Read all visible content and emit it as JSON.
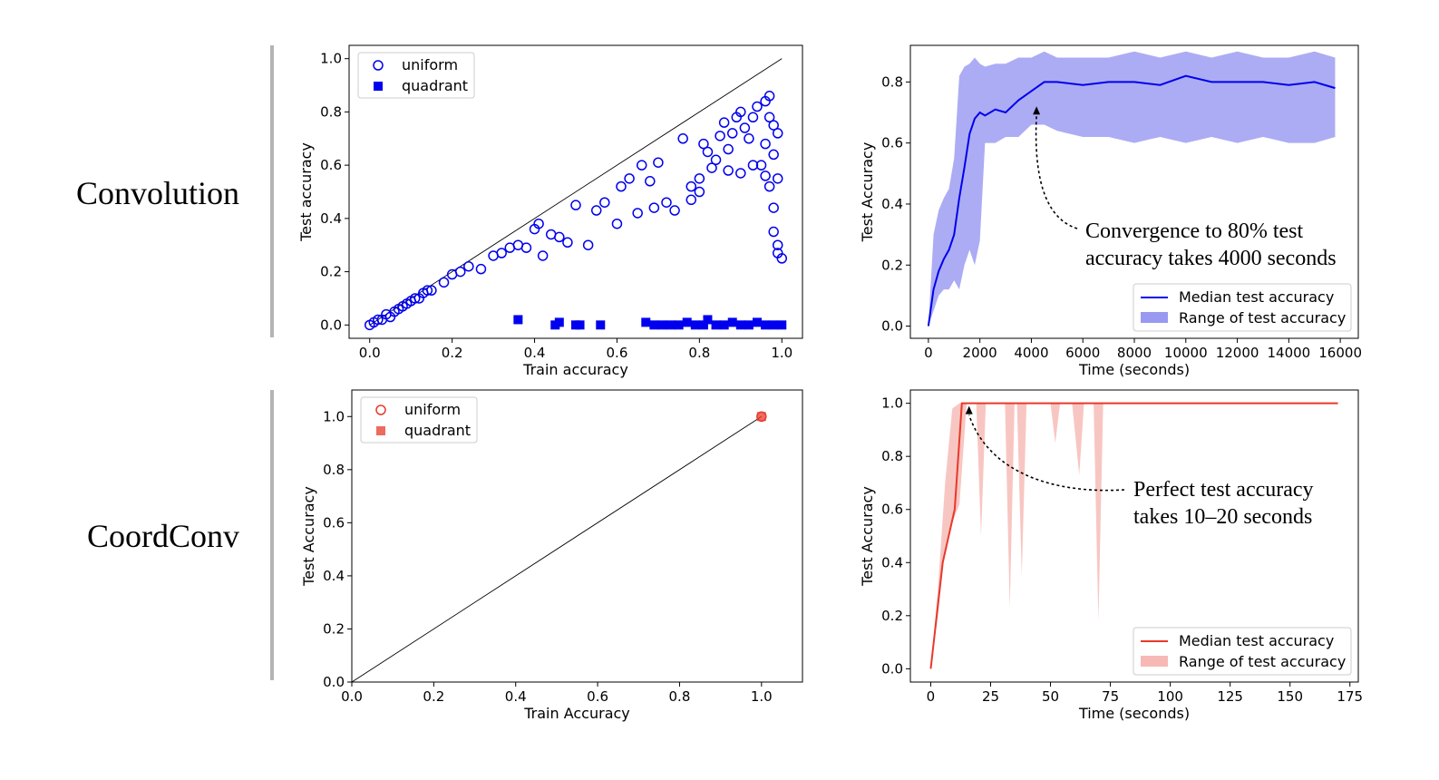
{
  "row_labels": [
    "Convolution",
    "CoordConv"
  ],
  "chart_data": [
    {
      "type": "scatter",
      "xlabel": "Train accuracy",
      "ylabel": "Test accuracy",
      "xlim": [
        -0.05,
        1.05
      ],
      "ylim": [
        -0.05,
        1.05
      ],
      "xticks": [
        0.0,
        0.2,
        0.4,
        0.6,
        0.8,
        1.0
      ],
      "yticks": [
        0.0,
        0.2,
        0.4,
        0.6,
        0.8,
        1.0
      ],
      "tick_labels_x": [
        "0.0",
        "0.2",
        "0.4",
        "0.6",
        "0.8",
        "1.0"
      ],
      "tick_labels_y": [
        "0.0",
        "0.2",
        "0.4",
        "0.6",
        "0.8",
        "1.0"
      ],
      "diagonal": true,
      "color": "#0000ee",
      "legend_position": "top-left",
      "series": [
        {
          "name": "uniform",
          "marker": "open-circle",
          "points": [
            [
              0.0,
              0.0
            ],
            [
              0.01,
              0.01
            ],
            [
              0.02,
              0.02
            ],
            [
              0.03,
              0.02
            ],
            [
              0.04,
              0.04
            ],
            [
              0.05,
              0.03
            ],
            [
              0.06,
              0.05
            ],
            [
              0.07,
              0.06
            ],
            [
              0.08,
              0.07
            ],
            [
              0.09,
              0.08
            ],
            [
              0.1,
              0.09
            ],
            [
              0.11,
              0.1
            ],
            [
              0.12,
              0.1
            ],
            [
              0.13,
              0.12
            ],
            [
              0.14,
              0.13
            ],
            [
              0.15,
              0.13
            ],
            [
              0.18,
              0.16
            ],
            [
              0.2,
              0.19
            ],
            [
              0.22,
              0.2
            ],
            [
              0.24,
              0.22
            ],
            [
              0.27,
              0.21
            ],
            [
              0.3,
              0.26
            ],
            [
              0.32,
              0.27
            ],
            [
              0.34,
              0.29
            ],
            [
              0.36,
              0.3
            ],
            [
              0.38,
              0.29
            ],
            [
              0.4,
              0.36
            ],
            [
              0.41,
              0.38
            ],
            [
              0.42,
              0.26
            ],
            [
              0.44,
              0.34
            ],
            [
              0.46,
              0.33
            ],
            [
              0.48,
              0.31
            ],
            [
              0.5,
              0.45
            ],
            [
              0.53,
              0.3
            ],
            [
              0.55,
              0.43
            ],
            [
              0.57,
              0.46
            ],
            [
              0.6,
              0.38
            ],
            [
              0.61,
              0.52
            ],
            [
              0.63,
              0.55
            ],
            [
              0.65,
              0.42
            ],
            [
              0.66,
              0.6
            ],
            [
              0.68,
              0.54
            ],
            [
              0.69,
              0.44
            ],
            [
              0.7,
              0.61
            ],
            [
              0.72,
              0.46
            ],
            [
              0.74,
              0.43
            ],
            [
              0.76,
              0.7
            ],
            [
              0.78,
              0.52
            ],
            [
              0.8,
              0.55
            ],
            [
              0.81,
              0.68
            ],
            [
              0.82,
              0.65
            ],
            [
              0.83,
              0.59
            ],
            [
              0.84,
              0.62
            ],
            [
              0.85,
              0.71
            ],
            [
              0.86,
              0.76
            ],
            [
              0.87,
              0.66
            ],
            [
              0.88,
              0.72
            ],
            [
              0.89,
              0.78
            ],
            [
              0.9,
              0.8
            ],
            [
              0.91,
              0.74
            ],
            [
              0.92,
              0.7
            ],
            [
              0.93,
              0.78
            ],
            [
              0.94,
              0.82
            ],
            [
              0.95,
              0.6
            ],
            [
              0.96,
              0.84
            ],
            [
              0.96,
              0.68
            ],
            [
              0.97,
              0.86
            ],
            [
              0.97,
              0.52
            ],
            [
              0.98,
              0.75
            ],
            [
              0.98,
              0.44
            ],
            [
              0.98,
              0.35
            ],
            [
              0.99,
              0.72
            ],
            [
              0.99,
              0.3
            ],
            [
              0.99,
              0.27
            ],
            [
              1.0,
              0.25
            ],
            [
              0.99,
              0.55
            ],
            [
              0.98,
              0.64
            ],
            [
              0.97,
              0.78
            ],
            [
              0.96,
              0.56
            ],
            [
              0.93,
              0.6
            ],
            [
              0.9,
              0.57
            ],
            [
              0.87,
              0.58
            ],
            [
              0.8,
              0.5
            ],
            [
              0.78,
              0.47
            ]
          ]
        },
        {
          "name": "quadrant",
          "marker": "filled-square",
          "points": [
            [
              0.36,
              0.02
            ],
            [
              0.45,
              0.0
            ],
            [
              0.46,
              0.01
            ],
            [
              0.5,
              0.0
            ],
            [
              0.51,
              0.0
            ],
            [
              0.56,
              0.0
            ],
            [
              0.67,
              0.01
            ],
            [
              0.69,
              0.0
            ],
            [
              0.71,
              0.0
            ],
            [
              0.73,
              0.0
            ],
            [
              0.75,
              0.0
            ],
            [
              0.77,
              0.01
            ],
            [
              0.79,
              0.0
            ],
            [
              0.81,
              0.0
            ],
            [
              0.82,
              0.02
            ],
            [
              0.84,
              0.0
            ],
            [
              0.86,
              0.0
            ],
            [
              0.88,
              0.01
            ],
            [
              0.9,
              0.0
            ],
            [
              0.92,
              0.0
            ],
            [
              0.94,
              0.01
            ],
            [
              0.96,
              0.0
            ],
            [
              0.98,
              0.0
            ],
            [
              1.0,
              0.0
            ]
          ]
        }
      ]
    },
    {
      "type": "line",
      "xlabel": "Time (seconds)",
      "ylabel": "Test Accuracy",
      "xlim": [
        -700,
        16700
      ],
      "ylim": [
        -0.04,
        0.92
      ],
      "xticks": [
        0,
        2000,
        4000,
        6000,
        8000,
        10000,
        12000,
        14000,
        16000
      ],
      "yticks": [
        0.0,
        0.2,
        0.4,
        0.6,
        0.8
      ],
      "tick_labels_x": [
        "0",
        "2000",
        "4000",
        "6000",
        "8000",
        "10000",
        "12000",
        "14000",
        "16000"
      ],
      "tick_labels_y": [
        "0.0",
        "0.2",
        "0.4",
        "0.6",
        "0.8"
      ],
      "median_color": "#0000ee",
      "range_color": "#8080ee",
      "legend_position": "bottom-right",
      "series": [
        {
          "name": "Median test accuracy",
          "x": [
            0,
            200,
            400,
            600,
            800,
            1000,
            1200,
            1400,
            1600,
            1800,
            2000,
            2200,
            2600,
            3000,
            3500,
            4000,
            4500,
            5000,
            6000,
            7000,
            8000,
            9000,
            10000,
            11000,
            12000,
            13000,
            14000,
            15000,
            15800
          ],
          "y": [
            0.0,
            0.12,
            0.18,
            0.22,
            0.25,
            0.3,
            0.42,
            0.52,
            0.63,
            0.68,
            0.7,
            0.69,
            0.71,
            0.7,
            0.74,
            0.77,
            0.8,
            0.8,
            0.79,
            0.8,
            0.8,
            0.79,
            0.82,
            0.8,
            0.8,
            0.8,
            0.79,
            0.8,
            0.78
          ]
        },
        {
          "name": "Range of test accuracy",
          "x": [
            0,
            200,
            400,
            600,
            800,
            1000,
            1200,
            1400,
            1600,
            1800,
            2000,
            2200,
            2600,
            3000,
            3500,
            4000,
            4500,
            5000,
            6000,
            7000,
            8000,
            9000,
            10000,
            11000,
            12000,
            13000,
            14000,
            15000,
            15800
          ],
          "y_low": [
            0.0,
            0.05,
            0.1,
            0.12,
            0.12,
            0.15,
            0.12,
            0.2,
            0.25,
            0.2,
            0.28,
            0.6,
            0.6,
            0.62,
            0.62,
            0.66,
            0.66,
            0.64,
            0.62,
            0.62,
            0.6,
            0.62,
            0.6,
            0.62,
            0.6,
            0.62,
            0.6,
            0.6,
            0.62
          ],
          "y_high": [
            0.0,
            0.3,
            0.38,
            0.42,
            0.45,
            0.55,
            0.82,
            0.85,
            0.86,
            0.88,
            0.86,
            0.85,
            0.86,
            0.86,
            0.88,
            0.88,
            0.9,
            0.88,
            0.88,
            0.88,
            0.9,
            0.88,
            0.9,
            0.88,
            0.9,
            0.88,
            0.88,
            0.9,
            0.88
          ]
        }
      ],
      "annotation": {
        "lines": [
          "Convergence to 80% test",
          "accuracy takes 4000 seconds"
        ],
        "arrow_to": [
          4200,
          0.72
        ]
      }
    },
    {
      "type": "scatter",
      "xlabel": "Train Accuracy",
      "ylabel": "Test Accuracy",
      "xlim": [
        0.0,
        1.1
      ],
      "ylim": [
        0.0,
        1.1
      ],
      "xticks": [
        0.0,
        0.2,
        0.4,
        0.6,
        0.8,
        1.0
      ],
      "yticks": [
        0.0,
        0.2,
        0.4,
        0.6,
        0.8,
        1.0
      ],
      "tick_labels_x": [
        "0.0",
        "0.2",
        "0.4",
        "0.6",
        "0.8",
        "1.0"
      ],
      "tick_labels_y": [
        "0.0",
        "0.2",
        "0.4",
        "0.6",
        "0.8",
        "1.0"
      ],
      "diagonal": true,
      "color": "#e8392a",
      "legend_position": "top-left",
      "series": [
        {
          "name": "uniform",
          "marker": "open-circle",
          "points": [
            [
              1.0,
              1.0
            ]
          ]
        },
        {
          "name": "quadrant",
          "marker": "filled-square",
          "points": [
            [
              1.0,
              1.0
            ]
          ]
        }
      ]
    },
    {
      "type": "line",
      "xlabel": "Time (seconds)",
      "ylabel": "Test Accuracy",
      "xlim": [
        -8.5,
        178.5
      ],
      "ylim": [
        -0.05,
        1.05
      ],
      "xticks": [
        0,
        25,
        50,
        75,
        100,
        125,
        150,
        175
      ],
      "yticks": [
        0.0,
        0.2,
        0.4,
        0.6,
        0.8,
        1.0
      ],
      "tick_labels_x": [
        "0",
        "25",
        "50",
        "75",
        "100",
        "125",
        "150",
        "175"
      ],
      "tick_labels_y": [
        "0.0",
        "0.2",
        "0.4",
        "0.6",
        "0.8",
        "1.0"
      ],
      "median_color": "#e8392a",
      "range_color": "#f4a7a2",
      "legend_position": "bottom-right",
      "series": [
        {
          "name": "Median test accuracy",
          "x": [
            0,
            5,
            10,
            13,
            15,
            20,
            170
          ],
          "y": [
            0.0,
            0.4,
            0.6,
            1.0,
            1.0,
            1.0,
            1.0
          ]
        },
        {
          "name": "Range of test accuracy",
          "x": [
            0,
            3,
            6,
            9,
            12,
            15,
            19,
            21,
            23,
            24,
            31,
            33,
            35,
            36,
            38,
            40,
            42,
            50,
            52,
            54,
            59,
            62,
            64,
            68,
            70,
            72,
            170
          ],
          "y_low": [
            0.0,
            0.2,
            0.45,
            0.55,
            0.62,
            1.0,
            1.0,
            0.5,
            1.0,
            1.0,
            1.0,
            0.23,
            1.0,
            1.0,
            0.35,
            1.0,
            1.0,
            1.0,
            0.85,
            1.0,
            1.0,
            0.73,
            1.0,
            1.0,
            0.18,
            1.0,
            1.0
          ],
          "y_high": [
            0.0,
            0.3,
            0.7,
            0.98,
            1.0,
            1.0,
            1.0,
            1.0,
            1.0,
            1.0,
            1.0,
            1.0,
            1.0,
            1.0,
            1.0,
            1.0,
            1.0,
            1.0,
            1.0,
            1.0,
            1.0,
            1.0,
            1.0,
            1.0,
            1.0,
            1.0,
            1.0
          ]
        }
      ],
      "annotation": {
        "lines": [
          "Perfect test accuracy",
          "takes 10–20 seconds"
        ],
        "arrow_to": [
          16,
          0.99
        ]
      }
    }
  ]
}
